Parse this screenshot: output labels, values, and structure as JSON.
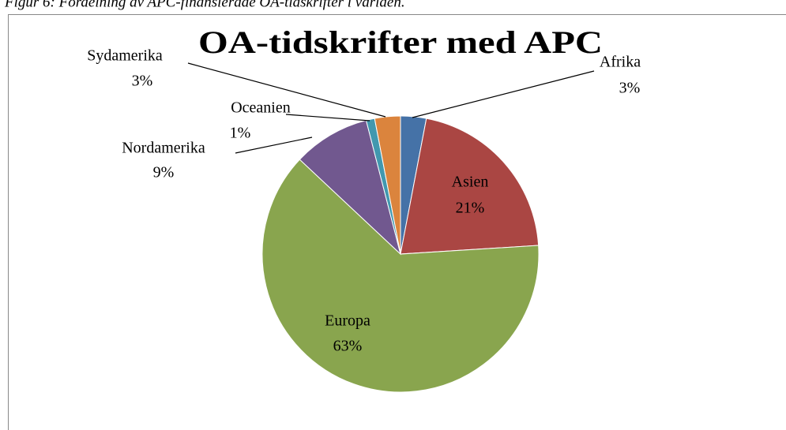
{
  "caption": "Figur 6: Fördelning av APC-finansierade OA-tidskrifter i världen.",
  "chart_data": {
    "type": "pie",
    "title": "OA-tidskrifter med APC",
    "categories": [
      "Afrika",
      "Asien",
      "Europa",
      "Nordamerika",
      "Oceanien",
      "Sydamerika"
    ],
    "values": [
      3,
      21,
      63,
      9,
      1,
      3
    ],
    "value_labels": [
      "3%",
      "21%",
      "63%",
      "9%",
      "1%",
      "3%"
    ],
    "colors": [
      "#4572a7",
      "#aa4643",
      "#89a54e",
      "#71588f",
      "#4198af",
      "#db843d"
    ]
  }
}
